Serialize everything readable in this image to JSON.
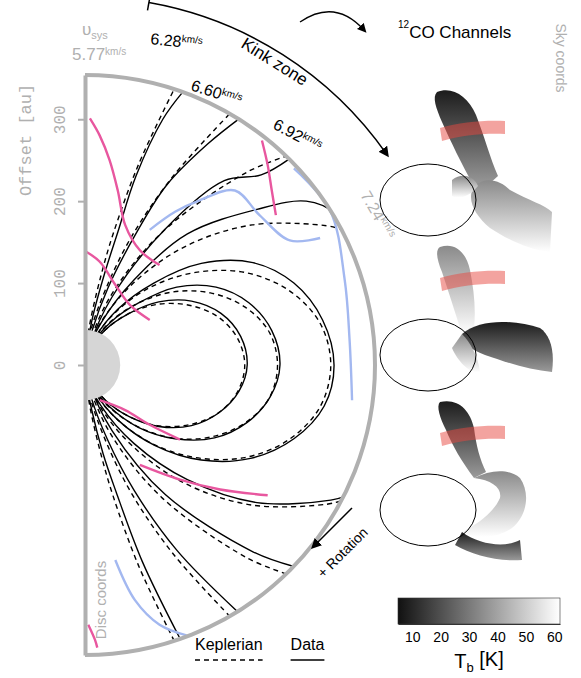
{
  "chart_data": [
    {
      "type": "isovelocity",
      "y_label": "Offset [au]",
      "xlim": [
        0,
        354
      ],
      "ylim": [
        -354,
        354
      ],
      "yticks": [
        0,
        100,
        200,
        300
      ],
      "tick_labels": "y",
      "inner_radius": 43,
      "legend": "bottom",
      "annotations": {
        "systemic_label": "υsys",
        "systemic_velocity": "5.77km/s",
        "kink_zone": "Kink zone",
        "velocity_labels": [
          "6.28km/s",
          "6.60km/s",
          "6.92km/s",
          "7.24km/s"
        ],
        "rotation": "+ Rotation",
        "disc_coords": "Disc coords",
        "sky_coords": "Sky coords",
        "channels_title": "12CO Channels"
      },
      "series": [
        {
          "name": "Keplerian",
          "color": "#000000",
          "line_style": "dashed",
          "x": [
            109,
            65,
            34,
            20,
            7,
            1,
            0,
            1,
            7,
            20,
            34,
            65,
            109,
            null,
            177,
            108,
            57,
            25,
            7,
            1,
            0,
            1,
            7,
            25,
            57,
            108,
            177,
            null,
            246,
            197,
            93,
            30,
            4,
            0,
            4,
            30,
            93,
            197,
            246,
            null,
            312,
            295,
            204,
            121,
            57,
            18,
            2,
            0,
            2,
            18,
            57,
            121,
            204,
            295,
            312,
            null,
            0,
            12,
            38,
            80,
            135,
            195,
            249,
            287,
            300,
            287,
            249,
            195,
            135,
            80,
            38,
            12,
            0,
            null,
            0,
            9,
            29,
            62,
            106,
            153,
            195,
            225,
            235,
            225,
            195,
            153,
            106,
            62,
            29,
            9,
            0,
            null,
            0,
            8,
            24,
            52,
            88,
            127,
            162,
            186,
            195,
            186,
            162,
            127,
            88,
            52,
            24,
            8,
            0
          ],
          "values": [
            -337,
            -244,
            -159,
            -111,
            -56,
            -18,
            0,
            18,
            56,
            111,
            159,
            244,
            337,
            null,
            -307,
            -231,
            -157,
            -92,
            -42,
            -11,
            0,
            11,
            42,
            92,
            157,
            231,
            307,
            null,
            -255,
            -235,
            -161,
            -82,
            -22,
            0,
            22,
            82,
            161,
            235,
            255,
            null,
            -166,
            -170,
            -171,
            -144,
            -98,
            -50,
            -13,
            0,
            13,
            50,
            98,
            144,
            171,
            170,
            166,
            null,
            0,
            -33,
            -65,
            -95,
            -113,
            -113,
            -91,
            -51,
            0,
            51,
            91,
            113,
            113,
            95,
            65,
            33,
            0,
            null,
            0,
            -26,
            -51,
            -74,
            -89,
            -88,
            -71,
            -40,
            0,
            40,
            71,
            88,
            89,
            74,
            51,
            26,
            0,
            null,
            0,
            -21,
            -42,
            -62,
            -74,
            -73,
            -59,
            -33,
            0,
            33,
            59,
            73,
            74,
            62,
            42,
            21,
            0
          ]
        },
        {
          "name": "Data",
          "color": "#000000",
          "line_style": "solid",
          "x": [
            115,
            70,
            38,
            22,
            8,
            1,
            0,
            2,
            9,
            24,
            40,
            62,
            95,
            120,
            null,
            185,
            112,
            60,
            27,
            8,
            1,
            0,
            1,
            9,
            28,
            62,
            100,
            150,
            190,
            null,
            255,
            205,
            98,
            33,
            5,
            0,
            5,
            33,
            98,
            170,
            215,
            250,
            null,
            318,
            300,
            210,
            125,
            60,
            19,
            2,
            0,
            2,
            20,
            60,
            125,
            210,
            270,
            305,
            322,
            null,
            0,
            13,
            40,
            85,
            142,
            202,
            255,
            292,
            304,
            290,
            255,
            205,
            142,
            84,
            40,
            13,
            0,
            null,
            0,
            10,
            31,
            65,
            110,
            158,
            198,
            226,
            238,
            228,
            200,
            160,
            112,
            66,
            31,
            10,
            0,
            null,
            0,
            9,
            25,
            54,
            90,
            130,
            164,
            188,
            198,
            190,
            166,
            130,
            90,
            54,
            25,
            9,
            0
          ],
          "values": [
            -332,
            -240,
            -155,
            -108,
            -54,
            -17,
            0,
            18,
            57,
            112,
            162,
            230,
            300,
            334,
            null,
            -300,
            -226,
            -153,
            -90,
            -41,
            -11,
            0,
            11,
            43,
            94,
            160,
            220,
            270,
            302,
            null,
            -246,
            -228,
            -158,
            -80,
            -22,
            0,
            22,
            83,
            166,
            225,
            232,
            252,
            null,
            -160,
            -165,
            -168,
            -140,
            -96,
            -49,
            -13,
            0,
            13,
            52,
            104,
            160,
            190,
            200,
            185,
            155,
            null,
            0,
            -34,
            -67,
            -98,
            -116,
            -114,
            -90,
            -50,
            0,
            55,
            100,
            125,
            124,
            100,
            68,
            34,
            0,
            null,
            0,
            -27,
            -52,
            -76,
            -90,
            -89,
            -70,
            -39,
            0,
            42,
            76,
            95,
            95,
            76,
            52,
            27,
            0,
            null,
            0,
            -22,
            -43,
            -63,
            -75,
            -74,
            -58,
            -32,
            0,
            35,
            63,
            78,
            77,
            63,
            43,
            22,
            0
          ]
        },
        {
          "color": "#e8579f",
          "line_style": "solid",
          "x": [
            6,
            18,
            30,
            40,
            49,
            67,
            91,
            null,
            2,
            18,
            37,
            55,
            79,
            null,
            216,
            223,
            228,
            233,
            null,
            67,
            116,
            165,
            223,
            null,
            18,
            49,
            79,
            116,
            null,
            4,
            12,
            15
          ],
          "values": [
            301,
            280,
            250,
            213,
            171,
            140,
            122,
            null,
            138,
            126,
            98,
            73,
            55,
            null,
            274,
            244,
            213,
            183,
            null,
            -122,
            -140,
            -152,
            -159,
            null,
            -43,
            -55,
            -73,
            -91,
            null,
            -317,
            -335,
            -345
          ]
        },
        {
          "color": "#a3b8f0",
          "line_style": "solid",
          "x": [
            79,
            110,
            140,
            183,
            213,
            250,
            287,
            null,
            255,
            299,
            317,
            323,
            326,
            null,
            37,
            61,
            91,
            124
          ],
          "values": [
            165,
            187,
            201,
            213,
            183,
            152,
            155,
            null,
            240,
            189,
            104,
            30,
            -43,
            null,
            -238,
            -287,
            -317,
            -330
          ]
        }
      ]
    },
    {
      "type": "colorbar",
      "x_label": "Tb [K]",
      "xlim": [
        5,
        62
      ],
      "xticks": [
        10,
        20,
        30,
        40,
        50,
        60
      ]
    }
  ]
}
